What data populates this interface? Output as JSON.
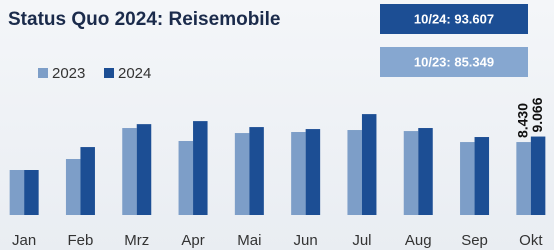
{
  "chart_data": {
    "type": "bar",
    "title": "Status Quo 2024: Reisemobile",
    "annotations": [
      {
        "text": "10/24: 93.607",
        "color": "#1c4e94"
      },
      {
        "text": "10/23: 85.349",
        "color": "#86a7d0"
      }
    ],
    "categories": [
      "Jan",
      "Feb",
      "Mrz",
      "Apr",
      "Mai",
      "Jun",
      "Jul",
      "Aug",
      "Sep",
      "Okt"
    ],
    "series": [
      {
        "name": "2023",
        "color": "#7d9ec8",
        "values": [
          5200,
          6470,
          10050,
          8550,
          9470,
          9590,
          9820,
          9700,
          8430,
          8430
        ],
        "value_labels": [
          null,
          null,
          null,
          null,
          null,
          null,
          null,
          null,
          null,
          "8.430"
        ]
      },
      {
        "name": "2024",
        "color": "#1c4e94",
        "values": [
          5200,
          7850,
          10500,
          10850,
          10160,
          9930,
          11660,
          10050,
          9010,
          9066
        ],
        "value_labels": [
          null,
          null,
          null,
          null,
          null,
          null,
          null,
          null,
          null,
          "9.066"
        ]
      }
    ],
    "ylim": [
      0,
      13000
    ],
    "legend": "top-left"
  }
}
